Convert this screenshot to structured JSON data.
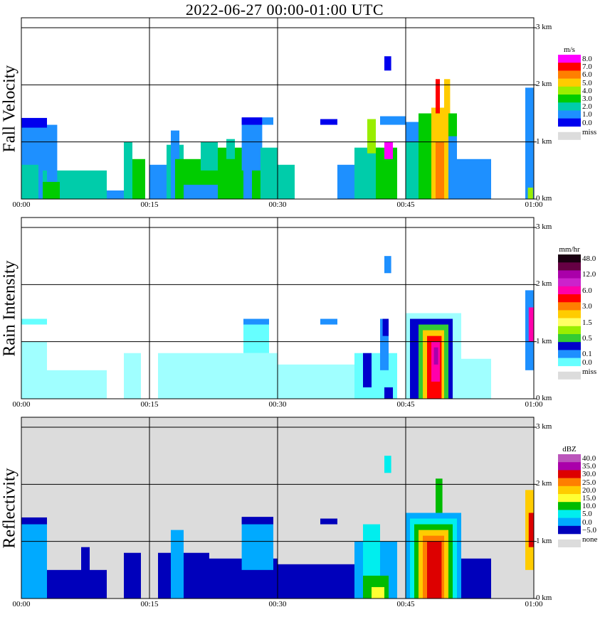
{
  "title": "2022-06-27   00:00-01:00 UTC",
  "colors": {
    "missing": "#dcdcdc",
    "grid": "#000000"
  },
  "chart_data": [
    {
      "type": "heatmap",
      "title": "",
      "ylabel": "Fall Velocity",
      "xlabel": "",
      "x_ticks": [
        "00:00",
        "00:15",
        "00:30",
        "00:45",
        "01:00"
      ],
      "y_ticks": [
        "0 km",
        "1 km",
        "2 km",
        "3 km"
      ],
      "x_range_minutes": [
        0,
        60
      ],
      "y_range_km": [
        0,
        3.0
      ],
      "grid": true,
      "background": "#ffffff",
      "colorbar": {
        "unit": "m/s",
        "labels": [
          "8.0",
          "7.0",
          "6.0",
          "5.0",
          "4.0",
          "3.0",
          "2.0",
          "1.0",
          "0.0"
        ],
        "colors": [
          "#ff00ff",
          "#ff0000",
          "#ff7f00",
          "#ffcc00",
          "#99ee00",
          "#00cc00",
          "#00ccaa",
          "#1e90ff",
          "#0000ee"
        ],
        "missing_label": "miss"
      },
      "regions": [
        {
          "t0": 0,
          "t1": 3,
          "h0": 0,
          "h1": 1.4,
          "color": "#1e90ff"
        },
        {
          "t0": 0,
          "t1": 3,
          "h0": 1.25,
          "h1": 1.42,
          "color": "#0000ee"
        },
        {
          "t0": 0,
          "t1": 2,
          "h0": 0,
          "h1": 0.6,
          "color": "#00ccaa"
        },
        {
          "t0": 2.5,
          "t1": 10,
          "h0": 0,
          "h1": 0.5,
          "color": "#00ccaa"
        },
        {
          "t0": 3,
          "t1": 4.2,
          "h0": 0,
          "h1": 1.3,
          "color": "#1e90ff"
        },
        {
          "t0": 2.5,
          "t1": 4.5,
          "h0": 0,
          "h1": 0.3,
          "color": "#00cc00"
        },
        {
          "t0": 10,
          "t1": 13,
          "h0": 0,
          "h1": 0.15,
          "color": "#1e90ff"
        },
        {
          "t0": 12,
          "t1": 13,
          "h0": 0,
          "h1": 1.0,
          "color": "#00ccaa"
        },
        {
          "t0": 13,
          "t1": 14.5,
          "h0": 0,
          "h1": 0.7,
          "color": "#00cc00"
        },
        {
          "t0": 15,
          "t1": 17,
          "h0": 0,
          "h1": 0.6,
          "color": "#1e90ff"
        },
        {
          "t0": 17,
          "t1": 19,
          "h0": 0,
          "h1": 0.95,
          "color": "#00ccaa"
        },
        {
          "t0": 17.5,
          "t1": 18.5,
          "h0": 0,
          "h1": 1.2,
          "color": "#1e90ff"
        },
        {
          "t0": 18,
          "t1": 23,
          "h0": 0,
          "h1": 0.7,
          "color": "#00cc00"
        },
        {
          "t0": 19,
          "t1": 23,
          "h0": 0,
          "h1": 0.25,
          "color": "#1e90ff"
        },
        {
          "t0": 21,
          "t1": 23,
          "h0": 0.5,
          "h1": 1.0,
          "color": "#00ccaa"
        },
        {
          "t0": 23,
          "t1": 26,
          "h0": 0,
          "h1": 0.9,
          "color": "#00cc00"
        },
        {
          "t0": 24,
          "t1": 25,
          "h0": 0.7,
          "h1": 1.05,
          "color": "#00ccaa"
        },
        {
          "t0": 26,
          "t1": 27,
          "h0": 0,
          "h1": 0.4,
          "color": "#00ccaa"
        },
        {
          "t0": 26,
          "t1": 29,
          "h0": 0,
          "h1": 0.7,
          "color": "#1e90ff"
        },
        {
          "t0": 27,
          "t1": 28,
          "h0": 0,
          "h1": 0.6,
          "color": "#00cc00"
        },
        {
          "t0": 25.8,
          "t1": 28.2,
          "h0": 0.5,
          "h1": 1.42,
          "color": "#1e90ff"
        },
        {
          "t0": 25.8,
          "t1": 28.2,
          "h0": 1.3,
          "h1": 1.43,
          "color": "#0000ee"
        },
        {
          "t0": 28,
          "t1": 30,
          "h0": 0,
          "h1": 0.9,
          "color": "#00ccaa"
        },
        {
          "t0": 28.2,
          "t1": 29.5,
          "h0": 1.3,
          "h1": 1.43,
          "color": "#1e90ff"
        },
        {
          "t0": 30,
          "t1": 32,
          "h0": 0,
          "h1": 0.6,
          "color": "#00ccaa"
        },
        {
          "t0": 35,
          "t1": 37,
          "h0": 1.3,
          "h1": 1.4,
          "color": "#0000ee"
        },
        {
          "t0": 37,
          "t1": 39,
          "h0": 0,
          "h1": 0.6,
          "color": "#1e90ff"
        },
        {
          "t0": 39,
          "t1": 42,
          "h0": 0,
          "h1": 0.9,
          "color": "#00ccaa"
        },
        {
          "t0": 40.5,
          "t1": 41.5,
          "h0": 0.8,
          "h1": 1.4,
          "color": "#99ee00"
        },
        {
          "t0": 41.5,
          "t1": 44,
          "h0": 0,
          "h1": 0.9,
          "color": "#00cc00"
        },
        {
          "t0": 42.5,
          "t1": 43.5,
          "h0": 0.7,
          "h1": 1.0,
          "color": "#ff00ff"
        },
        {
          "t0": 42,
          "t1": 45,
          "h0": 1.3,
          "h1": 1.45,
          "color": "#1e90ff"
        },
        {
          "t0": 42.5,
          "t1": 43.3,
          "h0": 2.25,
          "h1": 2.5,
          "color": "#0000ee"
        },
        {
          "t0": 45,
          "t1": 51,
          "h0": 0,
          "h1": 1.35,
          "color": "#1e90ff"
        },
        {
          "t0": 51,
          "t1": 55,
          "h0": 0,
          "h1": 0.7,
          "color": "#1e90ff"
        },
        {
          "t0": 45,
          "t1": 47,
          "h0": 0,
          "h1": 1.0,
          "color": "#00ccaa"
        },
        {
          "t0": 46.5,
          "t1": 48,
          "h0": 0,
          "h1": 1.5,
          "color": "#00cc00"
        },
        {
          "t0": 48,
          "t1": 50,
          "h0": 0,
          "h1": 1.6,
          "color": "#ffcc00"
        },
        {
          "t0": 48.5,
          "t1": 49.5,
          "h0": 0,
          "h1": 1.0,
          "color": "#ff7f00"
        },
        {
          "t0": 48.5,
          "t1": 49,
          "h0": 1.5,
          "h1": 2.1,
          "color": "#ff0000"
        },
        {
          "t0": 49.5,
          "t1": 50.2,
          "h0": 1.5,
          "h1": 2.1,
          "color": "#ffcc00"
        },
        {
          "t0": 50,
          "t1": 51,
          "h0": 1.1,
          "h1": 1.5,
          "color": "#00cc00"
        },
        {
          "t0": 59,
          "t1": 60,
          "h0": 0,
          "h1": 1.95,
          "color": "#1e90ff"
        },
        {
          "t0": 59.3,
          "t1": 59.9,
          "h0": 0,
          "h1": 0.2,
          "color": "#99ee00"
        }
      ]
    },
    {
      "type": "heatmap",
      "title": "",
      "ylabel": "Rain Intensity",
      "xlabel": "",
      "x_ticks": [
        "00:00",
        "00:15",
        "00:30",
        "00:45",
        "01:00"
      ],
      "y_ticks": [
        "0 km",
        "1 km",
        "2 km",
        "3 km"
      ],
      "x_range_minutes": [
        0,
        60
      ],
      "y_range_km": [
        0,
        3.0
      ],
      "grid": true,
      "background": "#ffffff",
      "colorbar": {
        "unit": "mm/hr",
        "labels": [
          "48.0",
          "",
          "12.0",
          "",
          "6.0",
          "",
          "3.0",
          "",
          "1.5",
          "",
          "0.5",
          "",
          "0.1",
          "0.0"
        ],
        "colors": [
          "#1a0011",
          "#660044",
          "#aa00aa",
          "#cc22cc",
          "#ff00aa",
          "#ff0000",
          "#ff7f00",
          "#ffcc00",
          "#ffff66",
          "#99ee00",
          "#33cc33",
          "#0000cc",
          "#1e90ff",
          "#66ffff"
        ],
        "missing_label": "miss"
      },
      "regions": [
        {
          "t0": 0,
          "t1": 3,
          "h0": 0,
          "h1": 1.0,
          "color": "#a0ffff"
        },
        {
          "t0": 0,
          "t1": 3,
          "h0": 1.3,
          "h1": 1.4,
          "color": "#66ffff"
        },
        {
          "t0": 3,
          "t1": 10,
          "h0": 0,
          "h1": 0.5,
          "color": "#a0ffff"
        },
        {
          "t0": 12,
          "t1": 14,
          "h0": 0,
          "h1": 0.8,
          "color": "#a0ffff"
        },
        {
          "t0": 16,
          "t1": 30,
          "h0": 0,
          "h1": 0.8,
          "color": "#a0ffff"
        },
        {
          "t0": 26,
          "t1": 29,
          "h0": 0.8,
          "h1": 1.35,
          "color": "#66ffff"
        },
        {
          "t0": 26,
          "t1": 29,
          "h0": 1.3,
          "h1": 1.4,
          "color": "#1e90ff"
        },
        {
          "t0": 30,
          "t1": 40,
          "h0": 0,
          "h1": 0.6,
          "color": "#a0ffff"
        },
        {
          "t0": 35,
          "t1": 37,
          "h0": 1.3,
          "h1": 1.4,
          "color": "#1e90ff"
        },
        {
          "t0": 39,
          "t1": 44,
          "h0": 0,
          "h1": 0.8,
          "color": "#66ffff"
        },
        {
          "t0": 40,
          "t1": 41,
          "h0": 0.2,
          "h1": 0.8,
          "color": "#0000cc"
        },
        {
          "t0": 42,
          "t1": 43,
          "h0": 0.5,
          "h1": 1.4,
          "color": "#1e90ff"
        },
        {
          "t0": 42.3,
          "t1": 43,
          "h0": 1.1,
          "h1": 1.4,
          "color": "#0000cc"
        },
        {
          "t0": 42.5,
          "t1": 43.5,
          "h0": 0,
          "h1": 0.2,
          "color": "#0000cc"
        },
        {
          "t0": 42.5,
          "t1": 43.3,
          "h0": 2.2,
          "h1": 2.5,
          "color": "#1e90ff"
        },
        {
          "t0": 45,
          "t1": 51.5,
          "h0": 0,
          "h1": 1.5,
          "color": "#a0ffff"
        },
        {
          "t0": 51.5,
          "t1": 55,
          "h0": 0,
          "h1": 0.7,
          "color": "#a0ffff"
        },
        {
          "t0": 45.5,
          "t1": 50.5,
          "h0": 0,
          "h1": 1.4,
          "color": "#0000cc"
        },
        {
          "t0": 46.5,
          "t1": 50,
          "h0": 0,
          "h1": 1.3,
          "color": "#33cc33"
        },
        {
          "t0": 47,
          "t1": 49.5,
          "h0": 0,
          "h1": 1.2,
          "color": "#ffcc00"
        },
        {
          "t0": 47.5,
          "t1": 49.2,
          "h0": 0,
          "h1": 1.1,
          "color": "#ff0000"
        },
        {
          "t0": 48,
          "t1": 49,
          "h0": 0.3,
          "h1": 1.0,
          "color": "#ff00aa"
        },
        {
          "t0": 48.3,
          "t1": 48.8,
          "h0": 0.6,
          "h1": 0.9,
          "color": "#aa00aa"
        },
        {
          "t0": 59,
          "t1": 60,
          "h0": 0.5,
          "h1": 1.9,
          "color": "#1e90ff"
        },
        {
          "t0": 59.4,
          "t1": 60,
          "h0": 1.0,
          "h1": 1.6,
          "color": "#ff00aa"
        }
      ]
    },
    {
      "type": "heatmap",
      "title": "",
      "ylabel": "Reflectivity",
      "xlabel": "",
      "x_ticks": [
        "00:00",
        "00:15",
        "00:30",
        "00:45",
        "01:00"
      ],
      "y_ticks": [
        "0 km",
        "1 km",
        "2 km",
        "3 km"
      ],
      "x_range_minutes": [
        0,
        60
      ],
      "y_range_km": [
        0,
        3.0
      ],
      "grid": true,
      "background": "#dcdcdc",
      "colorbar": {
        "unit": "dBZ",
        "labels": [
          "40.0",
          "35.0",
          "30.0",
          "25.0",
          "20.0",
          "15.0",
          "10.0",
          "5.0",
          "0.0",
          "−5.0"
        ],
        "colors": [
          "#bb55bb",
          "#aa00aa",
          "#dd0000",
          "#ff7f00",
          "#ffcc00",
          "#ffff33",
          "#00bb00",
          "#00eeee",
          "#00aaff",
          "#0000bb"
        ],
        "missing_label": "none"
      },
      "regions": [
        {
          "t0": 0,
          "t1": 3,
          "h0": 0,
          "h1": 1.4,
          "color": "#00aaff"
        },
        {
          "t0": 0,
          "t1": 3,
          "h0": 1.3,
          "h1": 1.42,
          "color": "#0000bb"
        },
        {
          "t0": 3,
          "t1": 10,
          "h0": 0,
          "h1": 0.5,
          "color": "#0000bb"
        },
        {
          "t0": 7,
          "t1": 8,
          "h0": 0,
          "h1": 0.9,
          "color": "#0000bb"
        },
        {
          "t0": 12,
          "t1": 14,
          "h0": 0,
          "h1": 0.8,
          "color": "#0000bb"
        },
        {
          "t0": 16,
          "t1": 22,
          "h0": 0,
          "h1": 0.8,
          "color": "#0000bb"
        },
        {
          "t0": 17.5,
          "t1": 19,
          "h0": 0,
          "h1": 1.2,
          "color": "#00aaff"
        },
        {
          "t0": 22,
          "t1": 30,
          "h0": 0,
          "h1": 0.7,
          "color": "#0000bb"
        },
        {
          "t0": 25.8,
          "t1": 29.5,
          "h0": 0.5,
          "h1": 1.42,
          "color": "#00aaff"
        },
        {
          "t0": 25.8,
          "t1": 29.5,
          "h0": 1.3,
          "h1": 1.43,
          "color": "#0000bb"
        },
        {
          "t0": 30,
          "t1": 40,
          "h0": 0,
          "h1": 0.6,
          "color": "#0000bb"
        },
        {
          "t0": 35,
          "t1": 37,
          "h0": 1.3,
          "h1": 1.4,
          "color": "#0000bb"
        },
        {
          "t0": 39,
          "t1": 44,
          "h0": 0,
          "h1": 1.0,
          "color": "#00aaff"
        },
        {
          "t0": 40,
          "t1": 42,
          "h0": 0,
          "h1": 1.3,
          "color": "#00eeee"
        },
        {
          "t0": 40,
          "t1": 43,
          "h0": 0,
          "h1": 0.4,
          "color": "#00bb00"
        },
        {
          "t0": 41,
          "t1": 42.5,
          "h0": 0,
          "h1": 0.2,
          "color": "#ffff33"
        },
        {
          "t0": 42.5,
          "t1": 43.3,
          "h0": 2.2,
          "h1": 2.5,
          "color": "#00eeee"
        },
        {
          "t0": 45,
          "t1": 51.5,
          "h0": 0,
          "h1": 1.5,
          "color": "#00aaff"
        },
        {
          "t0": 51.5,
          "t1": 55,
          "h0": 0,
          "h1": 0.7,
          "color": "#0000bb"
        },
        {
          "t0": 45.5,
          "t1": 51,
          "h0": 0,
          "h1": 1.4,
          "color": "#00eeee"
        },
        {
          "t0": 46,
          "t1": 50.5,
          "h0": 0,
          "h1": 1.3,
          "color": "#00bb00"
        },
        {
          "t0": 46.5,
          "t1": 50,
          "h0": 0,
          "h1": 1.2,
          "color": "#ffcc00"
        },
        {
          "t0": 47,
          "t1": 49.5,
          "h0": 0,
          "h1": 1.1,
          "color": "#ff7f00"
        },
        {
          "t0": 47.5,
          "t1": 49.2,
          "h0": 0,
          "h1": 1.0,
          "color": "#dd0000"
        },
        {
          "t0": 48.5,
          "t1": 49.3,
          "h0": 1.5,
          "h1": 2.1,
          "color": "#00bb00"
        },
        {
          "t0": 59,
          "t1": 60,
          "h0": 0.5,
          "h1": 1.9,
          "color": "#ffcc00"
        },
        {
          "t0": 59.4,
          "t1": 60,
          "h0": 0.9,
          "h1": 1.5,
          "color": "#dd0000"
        }
      ]
    }
  ]
}
